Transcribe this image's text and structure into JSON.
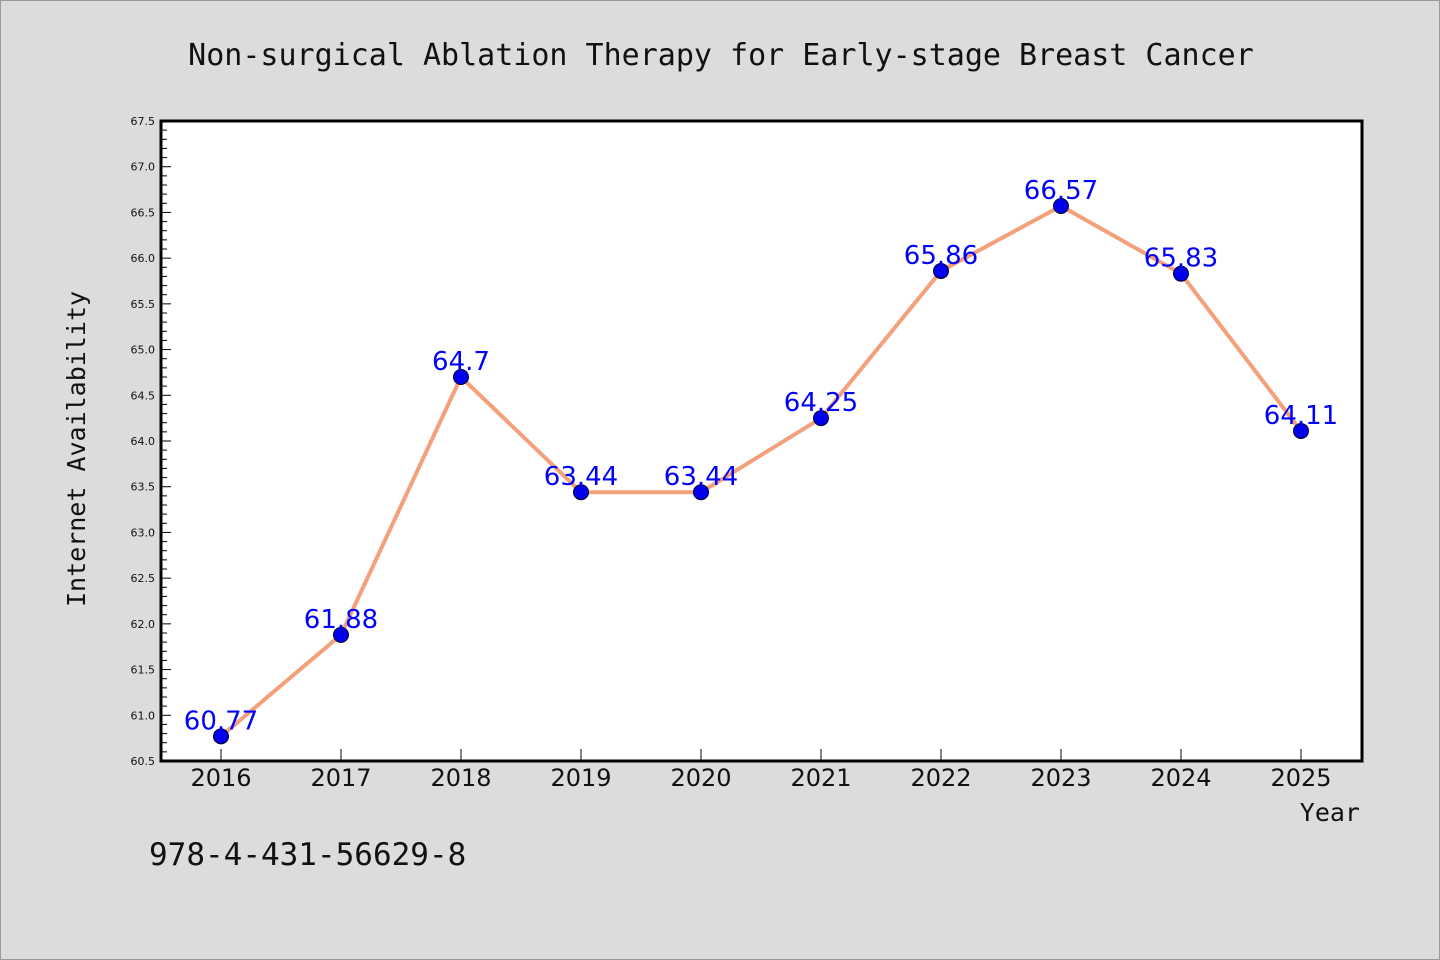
{
  "chart_data": {
    "type": "line",
    "title": "Non-surgical Ablation Therapy for Early-stage Breast Cancer",
    "xlabel": "Year",
    "ylabel": "Internet Availability",
    "x": [
      "2016",
      "2017",
      "2018",
      "2019",
      "2020",
      "2021",
      "2022",
      "2023",
      "2024",
      "2025"
    ],
    "values": [
      60.77,
      61.88,
      64.7,
      63.44,
      63.44,
      64.25,
      65.86,
      66.57,
      65.83,
      64.11
    ],
    "data_labels": [
      "60.77",
      "61.88",
      "64.7",
      "63.44",
      "63.44",
      "64.25",
      "65.86",
      "66.57",
      "65.83",
      "64.11"
    ],
    "ylim": [
      60.5,
      67.5
    ],
    "yticks": [
      "60.5",
      "61.0",
      "61.5",
      "62.0",
      "62.5",
      "63.0",
      "63.5",
      "64.0",
      "64.5",
      "65.0",
      "65.5",
      "66.0",
      "66.5",
      "67.0",
      "67.5"
    ],
    "grid": false,
    "legend": "none",
    "colors": {
      "line": "#f4a07a",
      "marker": "#0000ee",
      "data_label": "#0000ff",
      "plot_background": "#ffffff",
      "figure_background": "#dcdcdc"
    }
  },
  "footer": {
    "isbn": "978-4-431-56629-8"
  }
}
